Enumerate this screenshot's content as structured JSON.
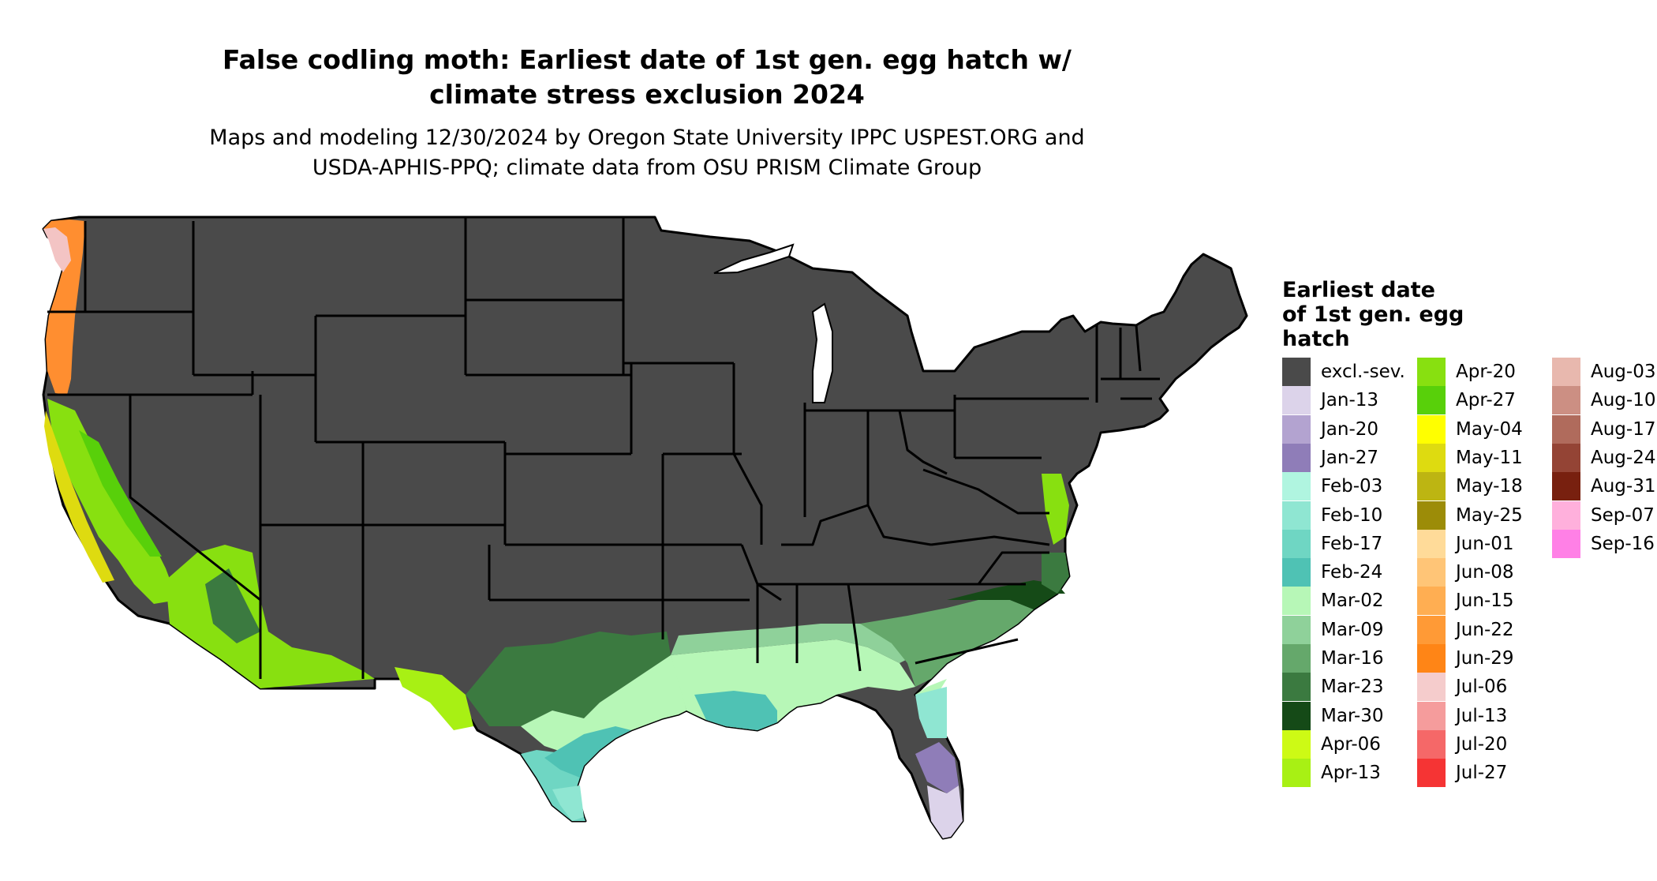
{
  "title_line1": "False codling moth: Earliest date of 1st gen. egg hatch w/",
  "title_line2": "climate stress exclusion 2024",
  "subtitle_line1": "Maps and modeling 12/30/2024 by Oregon State University IPPC USPEST.ORG and",
  "subtitle_line2": "USDA-APHIS-PPQ; climate data from OSU PRISM Climate Group",
  "legend": {
    "title_lines": [
      "Earliest date",
      "of 1st gen. egg",
      "hatch"
    ],
    "items": [
      {
        "label": "excl.-sev.",
        "color": "#4a4a4a"
      },
      {
        "label": "Jan-13",
        "color": "#dcd3ea"
      },
      {
        "label": "Jan-20",
        "color": "#b3a3d0"
      },
      {
        "label": "Jan-27",
        "color": "#8f7db8"
      },
      {
        "label": "Feb-03",
        "color": "#b0f5e0"
      },
      {
        "label": "Feb-10",
        "color": "#8fe6d2"
      },
      {
        "label": "Feb-17",
        "color": "#6fd6c3"
      },
      {
        "label": "Feb-24",
        "color": "#4fc2b4"
      },
      {
        "label": "Mar-02",
        "color": "#b7f7b7"
      },
      {
        "label": "Mar-09",
        "color": "#8fd19a"
      },
      {
        "label": "Mar-16",
        "color": "#65a86b"
      },
      {
        "label": "Mar-23",
        "color": "#3b7a40"
      },
      {
        "label": "Mar-30",
        "color": "#154a17"
      },
      {
        "label": "Apr-06",
        "color": "#cdfa15"
      },
      {
        "label": "Apr-13",
        "color": "#a8f014"
      },
      {
        "label": "Apr-20",
        "color": "#88e010"
      },
      {
        "label": "Apr-27",
        "color": "#58d00a"
      },
      {
        "label": "May-04",
        "color": "#ffff00"
      },
      {
        "label": "May-11",
        "color": "#dedb10"
      },
      {
        "label": "May-18",
        "color": "#bdb512"
      },
      {
        "label": "May-25",
        "color": "#9c8c08"
      },
      {
        "label": "Jun-01",
        "color": "#ffdb99"
      },
      {
        "label": "Jun-08",
        "color": "#ffc577"
      },
      {
        "label": "Jun-15",
        "color": "#ffae52"
      },
      {
        "label": "Jun-22",
        "color": "#ff9a36"
      },
      {
        "label": "Jun-29",
        "color": "#ff8516"
      },
      {
        "label": "Jul-06",
        "color": "#f5cccc"
      },
      {
        "label": "Jul-13",
        "color": "#f59c9c"
      },
      {
        "label": "Jul-20",
        "color": "#f56868"
      },
      {
        "label": "Jul-27",
        "color": "#f53434"
      },
      {
        "label": "Aug-03",
        "color": "#e8b8ae"
      },
      {
        "label": "Aug-10",
        "color": "#cc8f83"
      },
      {
        "label": "Aug-17",
        "color": "#b06b5c"
      },
      {
        "label": "Aug-24",
        "color": "#944435"
      },
      {
        "label": "Aug-31",
        "color": "#78200f"
      },
      {
        "label": "Sep-07",
        "color": "#ffb0dc"
      },
      {
        "label": "Sep-16",
        "color": "#ff80e6"
      }
    ]
  }
}
